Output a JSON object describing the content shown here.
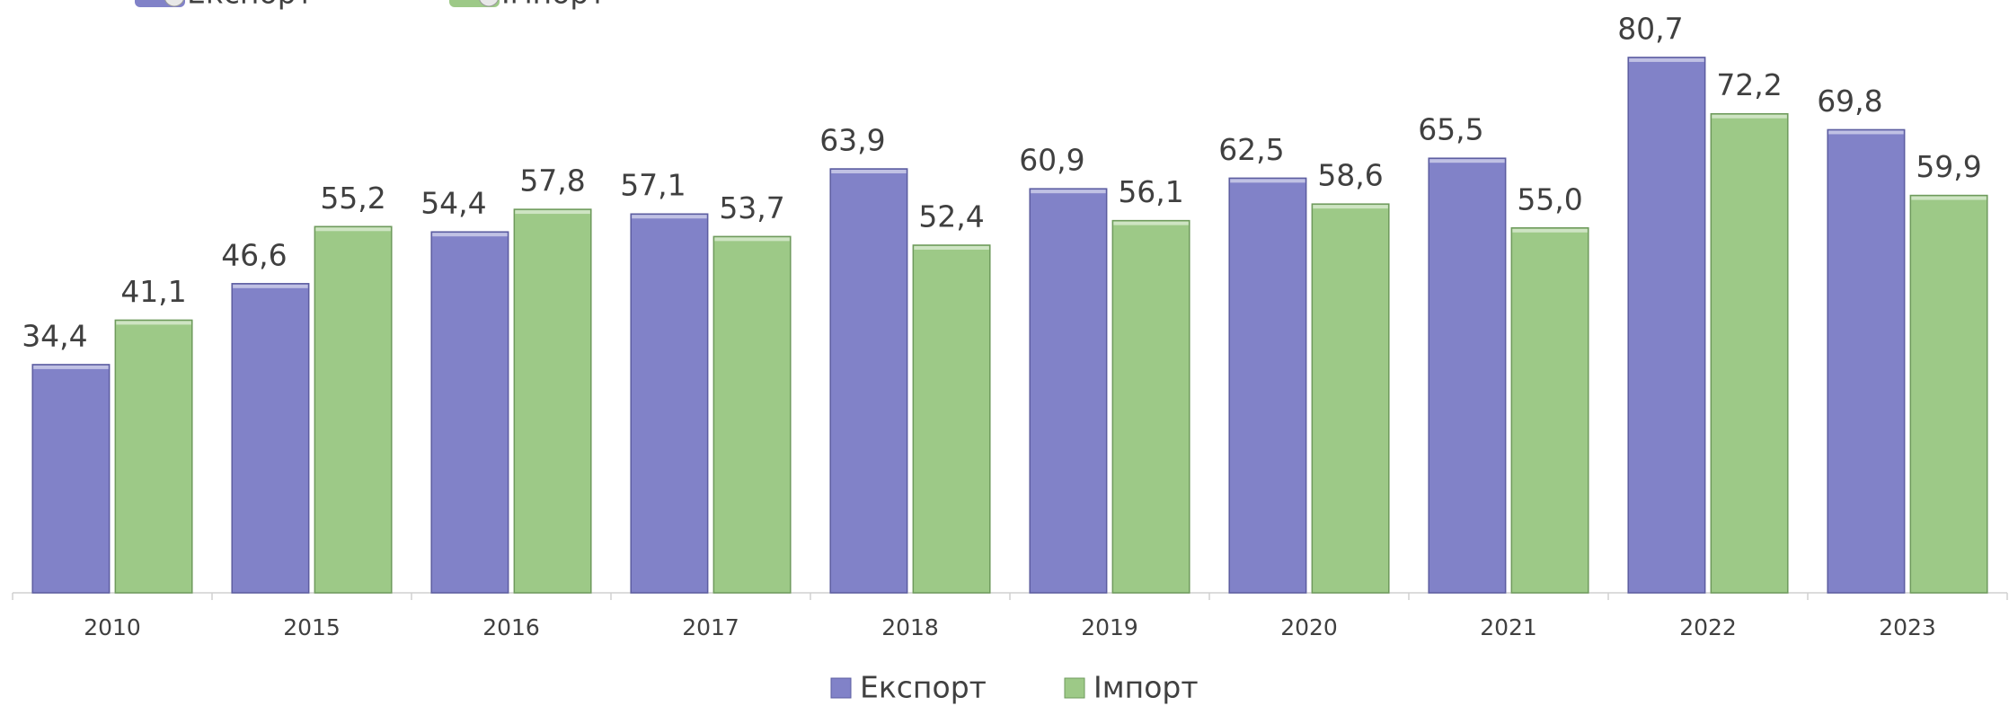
{
  "chart_data": {
    "type": "bar",
    "categories": [
      "2010",
      "2015",
      "2016",
      "2017",
      "2018",
      "2019",
      "2020",
      "2021",
      "2022",
      "2023"
    ],
    "series": [
      {
        "name": "Експорт",
        "color": "#8182c8",
        "values": [
          34.4,
          46.6,
          54.4,
          57.1,
          63.9,
          60.9,
          62.5,
          65.5,
          80.7,
          69.8
        ],
        "value_labels": [
          "34,4",
          "46,6",
          "54,4",
          "57,1",
          "63,9",
          "60,9",
          "62,5",
          "65,5",
          "80,7",
          "69,8"
        ]
      },
      {
        "name": "Імпорт",
        "color": "#9dc987",
        "values": [
          41.1,
          55.2,
          57.8,
          53.7,
          52.4,
          56.1,
          58.6,
          55.0,
          72.2,
          59.9
        ],
        "value_labels": [
          "41,1",
          "55,2",
          "57,8",
          "53,7",
          "52,4",
          "56,1",
          "58,6",
          "55,0",
          "72,2",
          "59,9"
        ]
      }
    ],
    "ylim": [
      0,
      88
    ],
    "legend": "bottom"
  }
}
